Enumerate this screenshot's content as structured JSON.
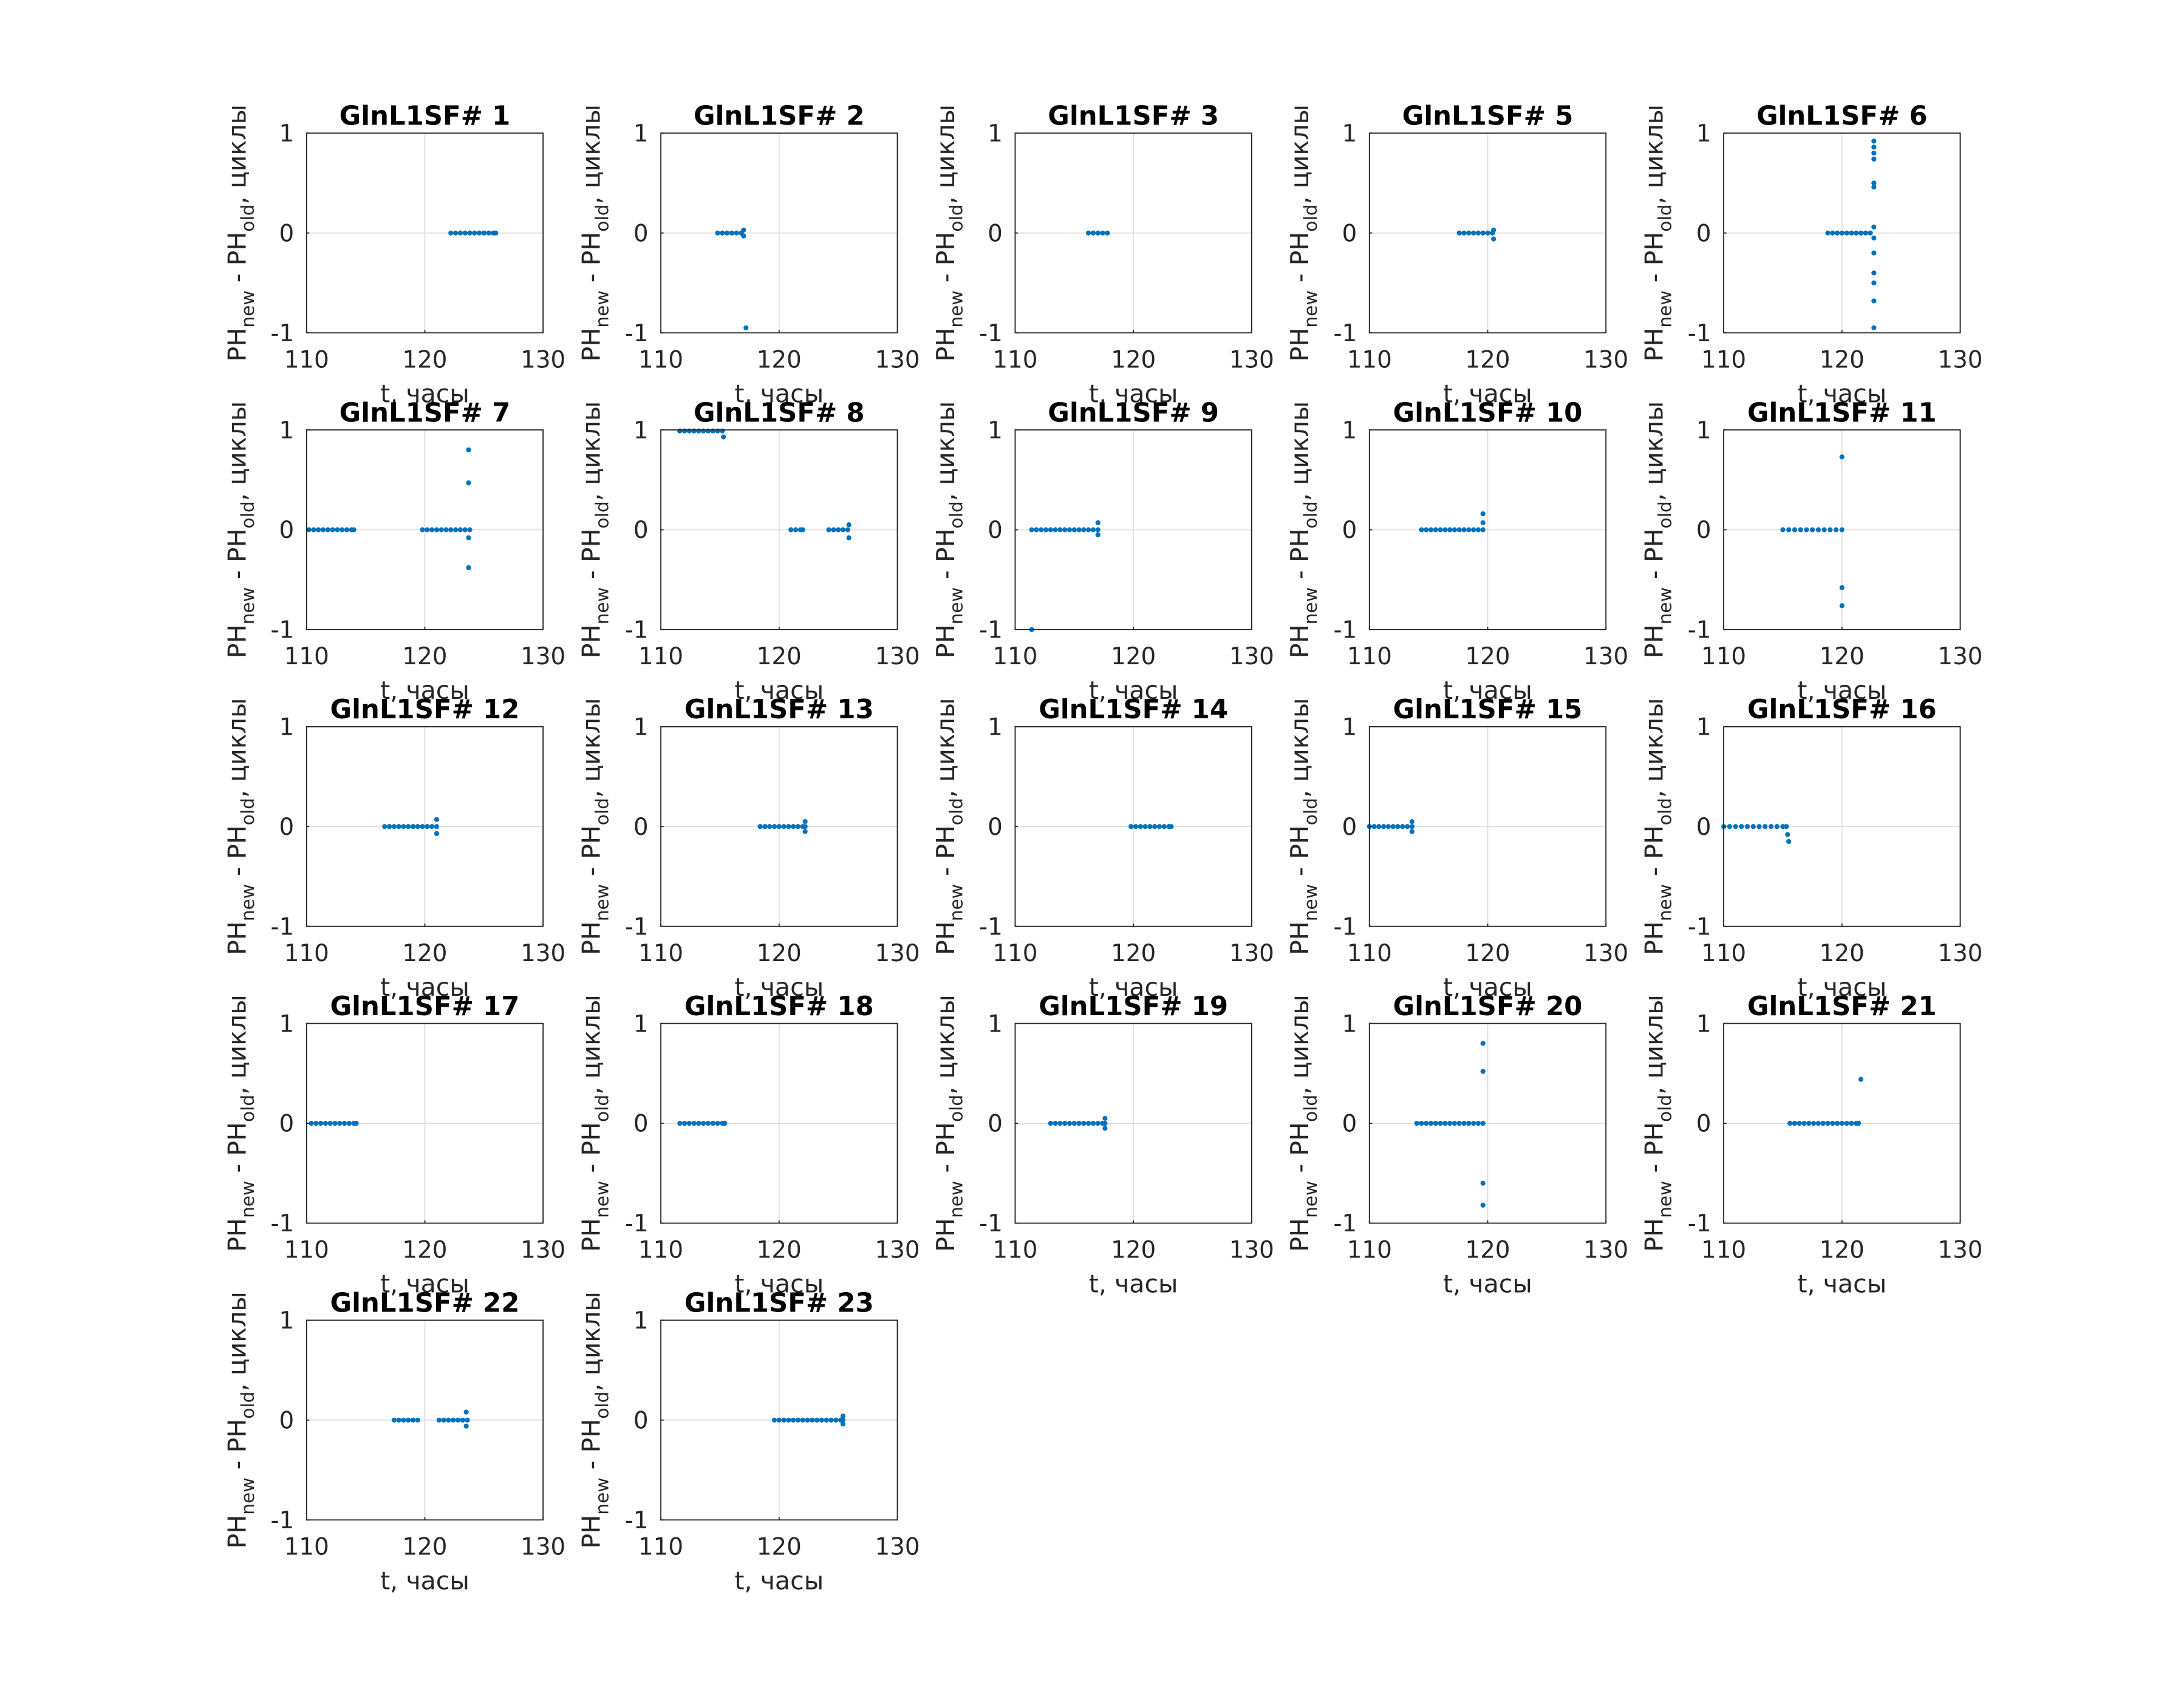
{
  "chart_data": [
    {
      "type": "scatter",
      "title": "GlnL1SF# 1",
      "xlabel": "t, часы",
      "ylabel": [
        "PH",
        "new",
        " - PH",
        "old",
        ", циклы"
      ],
      "color": "#0072bd",
      "xlim": [
        110,
        130
      ],
      "ylim": [
        -1,
        1
      ],
      "xticks": [
        110,
        120,
        130
      ],
      "yticks": [
        -1,
        0,
        1
      ],
      "grid": true,
      "x": [
        122.2,
        122.6,
        123.0,
        123.4,
        123.8,
        124.2,
        124.6,
        125.0,
        125.4,
        125.8,
        126.0
      ],
      "y": [
        0,
        0,
        0,
        0,
        0,
        0,
        0,
        0,
        0,
        0,
        0
      ]
    },
    {
      "type": "scatter",
      "title": "GlnL1SF# 2",
      "xlabel": "t, часы",
      "ylabel": [
        "PH",
        "new",
        " - PH",
        "old",
        ", циклы"
      ],
      "color": "#0072bd",
      "xlim": [
        110,
        130
      ],
      "ylim": [
        -1,
        1
      ],
      "xticks": [
        110,
        120,
        130
      ],
      "yticks": [
        -1,
        0,
        1
      ],
      "grid": true,
      "x": [
        114.8,
        115.2,
        115.6,
        116.0,
        116.4,
        116.8,
        117.0,
        117.0,
        117.2
      ],
      "y": [
        0,
        0,
        0,
        0,
        0,
        0,
        0.03,
        -0.03,
        -0.95
      ]
    },
    {
      "type": "scatter",
      "title": "GlnL1SF# 3",
      "xlabel": "t, часы",
      "ylabel": [
        "PH",
        "new",
        " - PH",
        "old",
        ", циклы"
      ],
      "color": "#0072bd",
      "xlim": [
        110,
        130
      ],
      "ylim": [
        -1,
        1
      ],
      "xticks": [
        110,
        120,
        130
      ],
      "yticks": [
        -1,
        0,
        1
      ],
      "grid": true,
      "x": [
        116.2,
        116.6,
        117.0,
        117.4,
        117.8
      ],
      "y": [
        0,
        0,
        0,
        0,
        0
      ]
    },
    {
      "type": "scatter",
      "title": "GlnL1SF# 5",
      "xlabel": "t, часы",
      "ylabel": [
        "PH",
        "new",
        " - PH",
        "old",
        ", циклы"
      ],
      "color": "#0072bd",
      "xlim": [
        110,
        130
      ],
      "ylim": [
        -1,
        1
      ],
      "xticks": [
        110,
        120,
        130
      ],
      "yticks": [
        -1,
        0,
        1
      ],
      "grid": true,
      "x": [
        117.6,
        118.0,
        118.4,
        118.8,
        119.2,
        119.6,
        120.0,
        120.4,
        120.5,
        120.5
      ],
      "y": [
        0,
        0,
        0,
        0,
        0,
        0,
        0,
        0,
        0.03,
        -0.06
      ]
    },
    {
      "type": "scatter",
      "title": "GlnL1SF# 6",
      "xlabel": "t, часы",
      "ylabel": [
        "PH",
        "new",
        " - PH",
        "old",
        ", циклы"
      ],
      "color": "#0072bd",
      "xlim": [
        110,
        130
      ],
      "ylim": [
        -1,
        1
      ],
      "xticks": [
        110,
        120,
        130
      ],
      "yticks": [
        -1,
        0,
        1
      ],
      "grid": true,
      "x": [
        118.8,
        119.2,
        119.6,
        120.0,
        120.4,
        120.8,
        121.2,
        121.6,
        122.0,
        122.4,
        122.7,
        122.7,
        122.7,
        122.7,
        122.7,
        122.7,
        122.7,
        122.7,
        122.7,
        122.7,
        122.7,
        122.7,
        122.7
      ],
      "y": [
        0,
        0,
        0,
        0,
        0,
        0,
        0,
        0,
        0,
        0,
        0.92,
        0.86,
        0.8,
        0.74,
        0.5,
        0.46,
        0.06,
        -0.05,
        -0.2,
        -0.4,
        -0.5,
        -0.68,
        -0.95
      ]
    },
    {
      "type": "scatter",
      "title": "GlnL1SF# 7",
      "xlabel": "t, часы",
      "ylabel": [
        "PH",
        "new",
        " - PH",
        "old",
        ", циклы"
      ],
      "color": "#0072bd",
      "xlim": [
        110,
        130
      ],
      "ylim": [
        -1,
        1
      ],
      "xticks": [
        110,
        120,
        130
      ],
      "yticks": [
        -1,
        0,
        1
      ],
      "grid": true,
      "x": [
        110.2,
        110.6,
        111.0,
        111.4,
        111.8,
        112.2,
        112.6,
        113.0,
        113.4,
        113.8,
        114.0,
        119.8,
        120.2,
        120.6,
        121.0,
        121.4,
        121.8,
        122.2,
        122.6,
        123.0,
        123.4,
        123.8,
        123.7,
        123.7,
        123.7,
        123.7
      ],
      "y": [
        0,
        0,
        0,
        0,
        0,
        0,
        0,
        0,
        0,
        0,
        0,
        0,
        0,
        0,
        0,
        0,
        0,
        0,
        0,
        0,
        0,
        0,
        0.8,
        0.47,
        -0.08,
        -0.38
      ]
    },
    {
      "type": "scatter",
      "title": "GlnL1SF# 8",
      "xlabel": "t, часы",
      "ylabel": [
        "PH",
        "new",
        " - PH",
        "old",
        ", циклы"
      ],
      "color": "#0072bd",
      "xlim": [
        110,
        130
      ],
      "ylim": [
        -1,
        1
      ],
      "xticks": [
        110,
        120,
        130
      ],
      "yticks": [
        -1,
        0,
        1
      ],
      "grid": true,
      "x": [
        111.6,
        112.0,
        112.4,
        112.8,
        113.2,
        113.6,
        114.0,
        114.4,
        114.8,
        115.2,
        115.3,
        121.0,
        121.4,
        121.8,
        122.0,
        124.2,
        124.6,
        125.0,
        125.4,
        125.8,
        125.9,
        125.9
      ],
      "y": [
        0.99,
        0.99,
        0.99,
        0.99,
        0.99,
        0.99,
        0.99,
        0.99,
        0.99,
        0.99,
        0.93,
        0,
        0,
        0,
        0,
        0,
        0,
        0,
        0,
        0,
        0.05,
        -0.08
      ]
    },
    {
      "type": "scatter",
      "title": "GlnL1SF# 9",
      "xlabel": "t, часы",
      "ylabel": [
        "PH",
        "new",
        " - PH",
        "old",
        ", циклы"
      ],
      "color": "#0072bd",
      "xlim": [
        110,
        130
      ],
      "ylim": [
        -1,
        1
      ],
      "xticks": [
        110,
        120,
        130
      ],
      "yticks": [
        -1,
        0,
        1
      ],
      "grid": true,
      "x": [
        111.4,
        111.8,
        112.2,
        112.6,
        113.0,
        113.4,
        113.8,
        114.2,
        114.6,
        115.0,
        115.4,
        115.8,
        116.2,
        116.6,
        117.0,
        117.0,
        117.0,
        111.4
      ],
      "y": [
        0,
        0,
        0,
        0,
        0,
        0,
        0,
        0,
        0,
        0,
        0,
        0,
        0,
        0,
        0,
        0.07,
        -0.05,
        -1.0
      ]
    },
    {
      "type": "scatter",
      "title": "GlnL1SF# 10",
      "xlabel": "t, часы",
      "ylabel": [
        "PH",
        "new",
        " - PH",
        "old",
        ", циклы"
      ],
      "color": "#0072bd",
      "xlim": [
        110,
        130
      ],
      "ylim": [
        -1,
        1
      ],
      "xticks": [
        110,
        120,
        130
      ],
      "yticks": [
        -1,
        0,
        1
      ],
      "grid": true,
      "x": [
        114.4,
        114.8,
        115.2,
        115.6,
        116.0,
        116.4,
        116.8,
        117.2,
        117.6,
        118.0,
        118.4,
        118.8,
        119.2,
        119.6,
        119.6,
        119.6
      ],
      "y": [
        0,
        0,
        0,
        0,
        0,
        0,
        0,
        0,
        0,
        0,
        0,
        0,
        0,
        0,
        0.16,
        0.07
      ]
    },
    {
      "type": "scatter",
      "title": "GlnL1SF# 11",
      "xlabel": "t, часы",
      "ylabel": [
        "PH",
        "new",
        " - PH",
        "old",
        ", циклы"
      ],
      "color": "#0072bd",
      "xlim": [
        110,
        130
      ],
      "ylim": [
        -1,
        1
      ],
      "xticks": [
        110,
        120,
        130
      ],
      "yticks": [
        -1,
        0,
        1
      ],
      "grid": true,
      "x": [
        115.0,
        115.5,
        116.0,
        116.5,
        117.0,
        117.5,
        118.0,
        118.5,
        119.0,
        119.5,
        120.0,
        120.0,
        120.0,
        120.0
      ],
      "y": [
        0,
        0,
        0,
        0,
        0,
        0,
        0,
        0,
        0,
        0,
        0,
        0.73,
        -0.58,
        -0.76
      ]
    },
    {
      "type": "scatter",
      "title": "GlnL1SF# 12",
      "xlabel": "t, часы",
      "ylabel": [
        "PH",
        "new",
        " - PH",
        "old",
        ", циклы"
      ],
      "color": "#0072bd",
      "xlim": [
        110,
        130
      ],
      "ylim": [
        -1,
        1
      ],
      "xticks": [
        110,
        120,
        130
      ],
      "yticks": [
        -1,
        0,
        1
      ],
      "grid": true,
      "x": [
        116.6,
        117.0,
        117.4,
        117.8,
        118.2,
        118.6,
        119.0,
        119.4,
        119.8,
        120.2,
        120.6,
        121.0,
        121.0,
        121.0
      ],
      "y": [
        0,
        0,
        0,
        0,
        0,
        0,
        0,
        0,
        0,
        0,
        0,
        0,
        0.07,
        -0.07
      ]
    },
    {
      "type": "scatter",
      "title": "GlnL1SF# 13",
      "xlabel": "t, часы",
      "ylabel": [
        "PH",
        "new",
        " - PH",
        "old",
        ", циклы"
      ],
      "color": "#0072bd",
      "xlim": [
        110,
        130
      ],
      "ylim": [
        -1,
        1
      ],
      "xticks": [
        110,
        120,
        130
      ],
      "yticks": [
        -1,
        0,
        1
      ],
      "grid": true,
      "x": [
        118.4,
        118.8,
        119.2,
        119.6,
        120.0,
        120.4,
        120.8,
        121.2,
        121.6,
        122.0,
        122.2,
        122.2,
        122.2
      ],
      "y": [
        0,
        0,
        0,
        0,
        0,
        0,
        0,
        0,
        0,
        0,
        0,
        0.05,
        -0.05
      ]
    },
    {
      "type": "scatter",
      "title": "GlnL1SF# 14",
      "xlabel": "t, часы",
      "ylabel": [
        "PH",
        "new",
        " - PH",
        "old",
        ", циклы"
      ],
      "color": "#0072bd",
      "xlim": [
        110,
        130
      ],
      "ylim": [
        -1,
        1
      ],
      "xticks": [
        110,
        120,
        130
      ],
      "yticks": [
        -1,
        0,
        1
      ],
      "grid": true,
      "x": [
        119.8,
        120.2,
        120.6,
        121.0,
        121.4,
        121.8,
        122.2,
        122.6,
        123.0,
        123.2
      ],
      "y": [
        0,
        0,
        0,
        0,
        0,
        0,
        0,
        0,
        0,
        0
      ]
    },
    {
      "type": "scatter",
      "title": "GlnL1SF# 15",
      "xlabel": "t, часы",
      "ylabel": [
        "PH",
        "new",
        " - PH",
        "old",
        ", циклы"
      ],
      "color": "#0072bd",
      "xlim": [
        110,
        130
      ],
      "ylim": [
        -1,
        1
      ],
      "xticks": [
        110,
        120,
        130
      ],
      "yticks": [
        -1,
        0,
        1
      ],
      "grid": true,
      "x": [
        110.0,
        110.4,
        110.8,
        111.2,
        111.6,
        112.0,
        112.4,
        112.8,
        113.2,
        113.6,
        113.6,
        113.6
      ],
      "y": [
        0,
        0,
        0,
        0,
        0,
        0,
        0,
        0,
        0,
        0,
        0.05,
        -0.05
      ]
    },
    {
      "type": "scatter",
      "title": "GlnL1SF# 16",
      "xlabel": "t, часы",
      "ylabel": [
        "PH",
        "new",
        " - PH",
        "old",
        ", циклы"
      ],
      "color": "#0072bd",
      "xlim": [
        110,
        130
      ],
      "ylim": [
        -1,
        1
      ],
      "xticks": [
        110,
        120,
        130
      ],
      "yticks": [
        -1,
        0,
        1
      ],
      "grid": true,
      "x": [
        110.0,
        110.5,
        111.0,
        111.5,
        112.0,
        112.5,
        113.0,
        113.5,
        114.0,
        114.5,
        115.0,
        115.3,
        115.4,
        115.5
      ],
      "y": [
        0,
        0,
        0,
        0,
        0,
        0,
        0,
        0,
        0,
        0,
        0,
        0,
        -0.08,
        -0.15
      ]
    },
    {
      "type": "scatter",
      "title": "GlnL1SF# 17",
      "xlabel": "t, часы",
      "ylabel": [
        "PH",
        "new",
        " - PH",
        "old",
        ", циклы"
      ],
      "color": "#0072bd",
      "xlim": [
        110,
        130
      ],
      "ylim": [
        -1,
        1
      ],
      "xticks": [
        110,
        120,
        130
      ],
      "yticks": [
        -1,
        0,
        1
      ],
      "grid": true,
      "x": [
        110.4,
        110.8,
        111.2,
        111.6,
        112.0,
        112.4,
        112.8,
        113.2,
        113.6,
        114.0,
        114.2
      ],
      "y": [
        0,
        0,
        0,
        0,
        0,
        0,
        0,
        0,
        0,
        0,
        0
      ]
    },
    {
      "type": "scatter",
      "title": "GlnL1SF# 18",
      "xlabel": "t, часы",
      "ylabel": [
        "PH",
        "new",
        " - PH",
        "old",
        ", циклы"
      ],
      "color": "#0072bd",
      "xlim": [
        110,
        130
      ],
      "ylim": [
        -1,
        1
      ],
      "xticks": [
        110,
        120,
        130
      ],
      "yticks": [
        -1,
        0,
        1
      ],
      "grid": true,
      "x": [
        111.6,
        112.0,
        112.4,
        112.8,
        113.2,
        113.6,
        114.0,
        114.4,
        114.8,
        115.2,
        115.4
      ],
      "y": [
        0,
        0,
        0,
        0,
        0,
        0,
        0,
        0,
        0,
        0,
        0
      ]
    },
    {
      "type": "scatter",
      "title": "GlnL1SF# 19",
      "xlabel": "t, часы",
      "ylabel": [
        "PH",
        "new",
        " - PH",
        "old",
        ", циклы"
      ],
      "color": "#0072bd",
      "xlim": [
        110,
        130
      ],
      "ylim": [
        -1,
        1
      ],
      "xticks": [
        110,
        120,
        130
      ],
      "yticks": [
        -1,
        0,
        1
      ],
      "grid": true,
      "x": [
        113.0,
        113.4,
        113.8,
        114.2,
        114.6,
        115.0,
        115.4,
        115.8,
        116.2,
        116.6,
        117.0,
        117.4,
        117.6,
        117.6,
        117.6
      ],
      "y": [
        0,
        0,
        0,
        0,
        0,
        0,
        0,
        0,
        0,
        0,
        0,
        0,
        0,
        0.05,
        -0.05
      ]
    },
    {
      "type": "scatter",
      "title": "GlnL1SF# 20",
      "xlabel": "t, часы",
      "ylabel": [
        "PH",
        "new",
        " - PH",
        "old",
        ", циклы"
      ],
      "color": "#0072bd",
      "xlim": [
        110,
        130
      ],
      "ylim": [
        -1,
        1
      ],
      "xticks": [
        110,
        120,
        130
      ],
      "yticks": [
        -1,
        0,
        1
      ],
      "grid": true,
      "x": [
        114.0,
        114.4,
        114.8,
        115.2,
        115.6,
        116.0,
        116.4,
        116.8,
        117.2,
        117.6,
        118.0,
        118.4,
        118.8,
        119.2,
        119.6,
        119.6,
        119.6,
        119.6,
        119.6
      ],
      "y": [
        0,
        0,
        0,
        0,
        0,
        0,
        0,
        0,
        0,
        0,
        0,
        0,
        0,
        0,
        0,
        0.8,
        0.52,
        -0.6,
        -0.82
      ]
    },
    {
      "type": "scatter",
      "title": "GlnL1SF# 21",
      "xlabel": "t, часы",
      "ylabel": [
        "PH",
        "new",
        " - PH",
        "old",
        ", циклы"
      ],
      "color": "#0072bd",
      "xlim": [
        110,
        130
      ],
      "ylim": [
        -1,
        1
      ],
      "xticks": [
        110,
        120,
        130
      ],
      "yticks": [
        -1,
        0,
        1
      ],
      "grid": true,
      "x": [
        115.6,
        116.0,
        116.4,
        116.8,
        117.2,
        117.6,
        118.0,
        118.4,
        118.8,
        119.2,
        119.6,
        120.0,
        120.4,
        120.8,
        121.2,
        121.4,
        121.6
      ],
      "y": [
        0,
        0,
        0,
        0,
        0,
        0,
        0,
        0,
        0,
        0,
        0,
        0,
        0,
        0,
        0,
        0,
        0.44
      ]
    },
    {
      "type": "scatter",
      "title": "GlnL1SF# 22",
      "xlabel": "t, часы",
      "ylabel": [
        "PH",
        "new",
        " - PH",
        "old",
        ", циклы"
      ],
      "color": "#0072bd",
      "xlim": [
        110,
        130
      ],
      "ylim": [
        -1,
        1
      ],
      "xticks": [
        110,
        120,
        130
      ],
      "yticks": [
        -1,
        0,
        1
      ],
      "grid": true,
      "x": [
        117.4,
        117.8,
        118.2,
        118.6,
        119.0,
        119.4,
        121.2,
        121.6,
        122.0,
        122.4,
        122.8,
        123.2,
        123.6,
        123.5,
        123.5
      ],
      "y": [
        0,
        0,
        0,
        0,
        0,
        0,
        0,
        0,
        0,
        0,
        0,
        0,
        0,
        0.08,
        -0.06
      ]
    },
    {
      "type": "scatter",
      "title": "GlnL1SF# 23",
      "xlabel": "t, часы",
      "ylabel": [
        "PH",
        "new",
        " - PH",
        "old",
        ", циклы"
      ],
      "color": "#0072bd",
      "xlim": [
        110,
        130
      ],
      "ylim": [
        -1,
        1
      ],
      "xticks": [
        110,
        120,
        130
      ],
      "yticks": [
        -1,
        0,
        1
      ],
      "grid": true,
      "x": [
        119.6,
        120.0,
        120.4,
        120.8,
        121.2,
        121.6,
        122.0,
        122.4,
        122.8,
        123.2,
        123.6,
        124.0,
        124.4,
        124.8,
        125.2,
        125.4,
        125.4,
        125.4
      ],
      "y": [
        0,
        0,
        0,
        0,
        0,
        0,
        0,
        0,
        0,
        0,
        0,
        0,
        0,
        0,
        0,
        0,
        0.04,
        -0.04
      ]
    }
  ]
}
